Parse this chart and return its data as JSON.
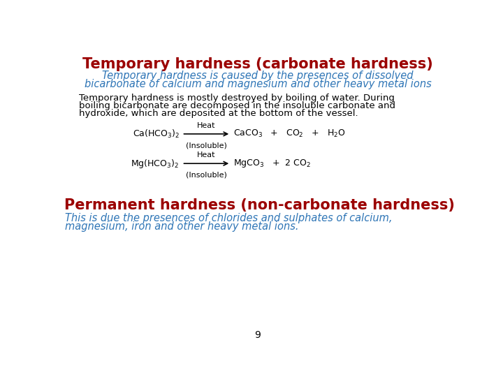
{
  "title": "Temporary hardness (carbonate hardness)",
  "title_color": "#9B0000",
  "subtitle_line1": "Temporary hardness is caused by the presences of dissolved",
  "subtitle_line2": "bicarbonate of calcium and magnesium and other heavy metal ions",
  "subtitle_color": "#2E75B6",
  "body_line1": "Temporary hardness is mostly destroyed by boiling of water. During",
  "body_line2": "boiling bicarbonate are decomposed in the insoluble carbonate and",
  "body_line3": "hydroxide, which are deposited at the bottom of the vessel.",
  "body_color": "#000000",
  "eq1_reactant": "Ca(HCO$_3$)$_2$",
  "eq1_arrow_label": "Heat",
  "eq1_product": "CaCO$_3$   +   CO$_2$   +   H$_2$O",
  "eq1_note": "(Insoluble)",
  "eq2_reactant": "Mg(HCO$_3$)$_2$",
  "eq2_arrow_label": "Heat",
  "eq2_product": "MgCO$_3$   +  2 CO$_2$",
  "eq2_note": "(Insoluble)",
  "section2_title": "Permanent hardness (non-carbonate hardness)",
  "section2_title_color": "#9B0000",
  "section2_line1": "This is due the presences of chlorides and sulphates of calcium,",
  "section2_line2": "magnesium, iron and other heavy metal ions.",
  "section2_subtitle_color": "#2E75B6",
  "page_number": "9",
  "background_color": "#FFFFFF",
  "title_fontsize": 15,
  "subtitle_fontsize": 10.5,
  "body_fontsize": 9.5,
  "eq_fontsize": 9,
  "section2_title_fontsize": 15,
  "section2_sub_fontsize": 10.5,
  "page_fontsize": 10
}
